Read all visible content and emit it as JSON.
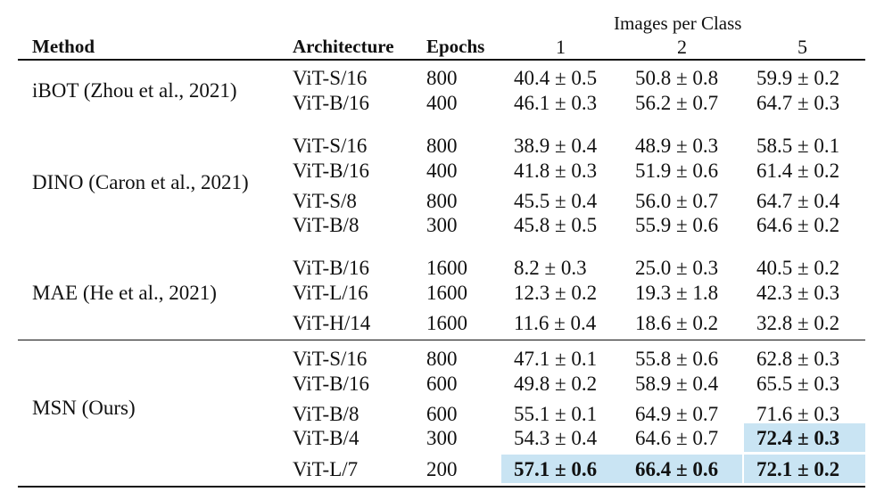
{
  "header": {
    "method": "Method",
    "architecture": "Architecture",
    "epochs": "Epochs",
    "images_per_class": "Images per Class",
    "ipc": [
      "1",
      "2",
      "5"
    ]
  },
  "groups": [
    {
      "method": "iBOT (Zhou et al., 2021)",
      "rows": [
        {
          "arch": "ViT-S/16",
          "epochs": "800",
          "v": [
            "40.4 ± 0.5",
            "50.8 ± 0.8",
            "59.9 ± 0.2"
          ]
        },
        {
          "arch": "ViT-B/16",
          "epochs": "400",
          "v": [
            "46.1 ± 0.3",
            "56.2 ± 0.7",
            "64.7 ± 0.3"
          ]
        }
      ]
    },
    {
      "method": "DINO (Caron et al., 2021)",
      "rows": [
        {
          "arch": "ViT-S/16",
          "epochs": "800",
          "v": [
            "38.9 ± 0.4",
            "48.9 ± 0.3",
            "58.5 ± 0.1"
          ]
        },
        {
          "arch": "ViT-B/16",
          "epochs": "400",
          "v": [
            "41.8 ± 0.3",
            "51.9 ± 0.6",
            "61.4 ± 0.2"
          ]
        },
        {
          "arch": "ViT-S/8",
          "epochs": "800",
          "v": [
            "45.5 ± 0.4",
            "56.0 ± 0.7",
            "64.7 ± 0.4"
          ]
        },
        {
          "arch": "ViT-B/8",
          "epochs": "300",
          "v": [
            "45.8 ± 0.5",
            "55.9 ± 0.6",
            "64.6 ± 0.2"
          ]
        }
      ]
    },
    {
      "method": "MAE (He et al., 2021)",
      "rows": [
        {
          "arch": "ViT-B/16",
          "epochs": "1600",
          "v": [
            "8.2 ± 0.3",
            "25.0 ± 0.3",
            "40.5 ± 0.2"
          ]
        },
        {
          "arch": "ViT-L/16",
          "epochs": "1600",
          "v": [
            "12.3 ± 0.2",
            "19.3 ± 1.8",
            "42.3 ± 0.3"
          ]
        },
        {
          "arch": "ViT-H/14",
          "epochs": "1600",
          "v": [
            "11.6 ± 0.4",
            "18.6 ± 0.2",
            "32.8 ± 0.2"
          ]
        }
      ]
    },
    {
      "method": "MSN (Ours)",
      "rows": [
        {
          "arch": "ViT-S/16",
          "epochs": "800",
          "v": [
            "47.1 ± 0.1",
            "55.8 ± 0.6",
            "62.8 ± 0.3"
          ]
        },
        {
          "arch": "ViT-B/16",
          "epochs": "600",
          "v": [
            "49.8 ± 0.2",
            "58.9 ± 0.4",
            "65.5 ± 0.3"
          ]
        },
        {
          "arch": "ViT-B/8",
          "epochs": "600",
          "v": [
            "55.1 ± 0.1",
            "64.9 ± 0.7",
            "71.6 ± 0.3"
          ]
        },
        {
          "arch": "ViT-B/4",
          "epochs": "300",
          "v": [
            "54.3 ± 0.4",
            "64.6 ± 0.7",
            "72.4 ± 0.3"
          ]
        },
        {
          "arch": "ViT-L/7",
          "epochs": "200",
          "v": [
            "57.1 ± 0.6",
            "66.4 ± 0.6",
            "72.1 ± 0.2"
          ]
        }
      ]
    }
  ],
  "best": [
    [
      3,
      3,
      2
    ],
    [
      3,
      4,
      0
    ],
    [
      3,
      4,
      1
    ],
    [
      3,
      4,
      2
    ]
  ]
}
